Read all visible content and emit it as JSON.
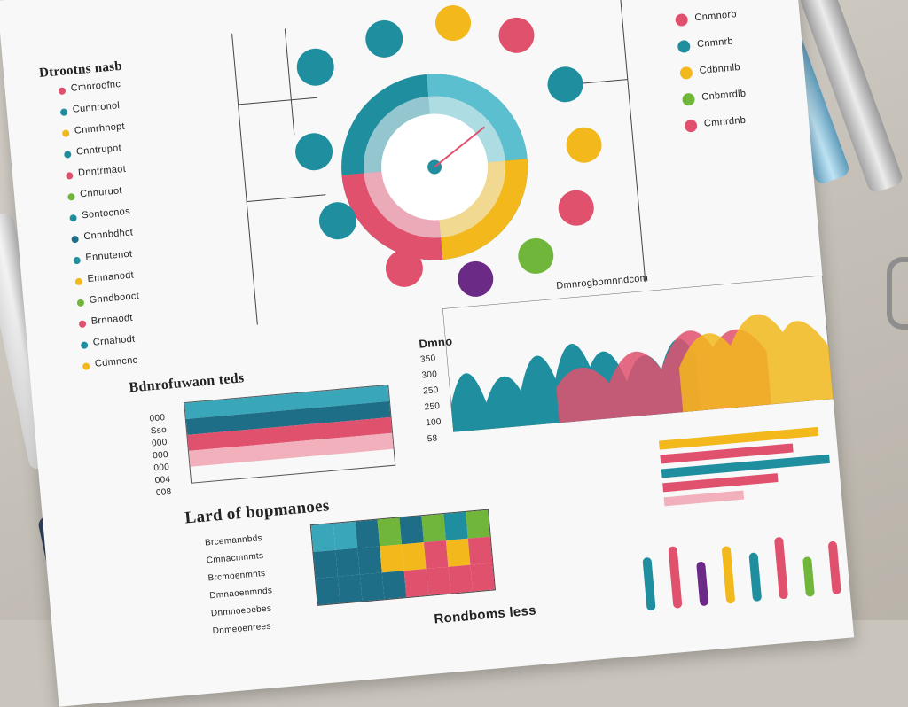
{
  "headings": {
    "top_left": "Dtrootns nasb",
    "left_mid": "Bdnrofuwaon teds",
    "left_bottom": "Lard of bopmanoes",
    "mid_label": "Dmno",
    "right_header": "Dmnrogbomnndcom",
    "bottom_caption": "Rondboms less"
  },
  "left_list": [
    "Cmnroofnc",
    "Cunnronol",
    "Cnmrhnopt",
    "Cnntrupot",
    "Dnntrmaot",
    "Cnnuruot",
    "Sontocnos",
    "Cnnnbdhct",
    "Ennutenot",
    "Emnanodt",
    "Gnndbooct",
    "Brnnaodt",
    "Crnahodt",
    "Cdmncnc"
  ],
  "left_mid_axis": [
    "000",
    "Sso",
    "000",
    "000",
    "000",
    "004",
    "008"
  ],
  "bottom_left_axis": [
    "Brcemannbds",
    "Cmnacmnmts",
    "Brcmoenmnts",
    "Dmnaoenmnds",
    "Dnmnoeoebes",
    "Dnmeoenrees"
  ],
  "mid_axis": [
    "350",
    "300",
    "250",
    "250",
    "100",
    "58"
  ],
  "right_list": [
    "Cnmnorb",
    "Cnmnrb",
    "Cdbnmlb",
    "Cnbmrdlb",
    "Cmnrdnb"
  ],
  "colors": {
    "teal": "#1f8fa0",
    "pink": "#e0516e",
    "yellow": "#f2b81c",
    "green": "#6fb63a",
    "purple": "#6a2a86",
    "dark_teal": "#1d6e86",
    "paper": "#f7f8f7"
  },
  "icons": [
    "pen-icon",
    "marker-icon",
    "binder-clip-icon"
  ]
}
